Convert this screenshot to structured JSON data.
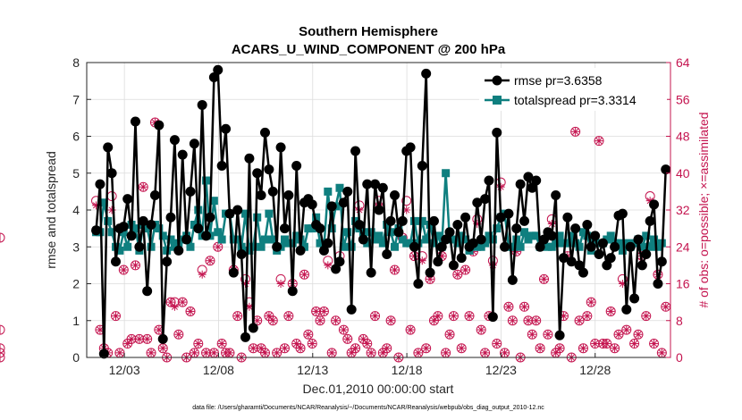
{
  "chart_data": {
    "type": "line",
    "title": "Southern Hemisphere",
    "subtitle": "ACARS_U_WIND_COMPONENT @ 200 hPa",
    "xlabel": "Dec.01,2010 00:00:00 start",
    "ylabel": "rmse and totalspread",
    "ylabel_right": "# of obs: o=possible; ×=assimilated",
    "x_ticks": [
      "12/03",
      "12/08",
      "12/13",
      "12/18",
      "12/23",
      "12/28"
    ],
    "x_tick_days": [
      3,
      8,
      13,
      18,
      23,
      28
    ],
    "xlim": [
      1.0,
      32.0
    ],
    "ylim": [
      0,
      8
    ],
    "yticks": [
      0,
      1,
      2,
      3,
      4,
      5,
      6,
      7,
      8
    ],
    "ylim_right": [
      0,
      64
    ],
    "yticks_right": [
      0,
      8,
      16,
      24,
      32,
      40,
      48,
      56,
      64
    ],
    "grid": true,
    "legend_position": "top-right",
    "footnote": "data file: /Users/gharamti/Documents/NCAR/Reanalysis/~/Documents/NCAR/Reanalysis/webpub/obs_diag_output_2010-12.nc",
    "colors": {
      "rmse": "#000000",
      "totalspread": "#0f7f7f",
      "obs_count": "#c4144f",
      "grid": "#dcdcdc"
    },
    "series": [
      {
        "name": "rmse pr=3.6358",
        "values": [
          3.45,
          4.7,
          0.1,
          5.7,
          5.0,
          2.6,
          3.5,
          3.55,
          4.3,
          3.3,
          6.4,
          3.0,
          3.7,
          1.8,
          3.6,
          4.4,
          6.3,
          0.5,
          2.6,
          3.8,
          5.9,
          2.9,
          5.5,
          3.2,
          4.5,
          5.8,
          3.5,
          6.85,
          3.3,
          3.8,
          7.6,
          7.8,
          5.2,
          6.2,
          3.9,
          2.3,
          4.0,
          2.8,
          0.55,
          5.4,
          0.8,
          5.0,
          4.4,
          6.1,
          5.1,
          4.5,
          3.0,
          5.7,
          3.5,
          4.4,
          1.8,
          5.2,
          2.9,
          4.2,
          4.3,
          4.15,
          3.6,
          3.5,
          2.9,
          3.1,
          4.1,
          2.4,
          2.6,
          4.2,
          4.5,
          1.3,
          5.6,
          3.6,
          3.2,
          4.7,
          2.3,
          4.7,
          4.0,
          4.6,
          2.8,
          3.7,
          4.4,
          3.4,
          3.7,
          5.6,
          5.7,
          3.0,
          2.0,
          5.2,
          7.7,
          2.3,
          3.7,
          2.6,
          3.0,
          3.2,
          3.4,
          2.5,
          3.6,
          2.7,
          3.8,
          3.0,
          3.1,
          4.2,
          3.2,
          4.3,
          4.8,
          1.1,
          6.1,
          3.8,
          3.0,
          3.9,
          2.1,
          3.5,
          4.7,
          3.7,
          4.9,
          4.6,
          4.8,
          3.0,
          3.2,
          3.4,
          3.3,
          4.4,
          0.6,
          2.7,
          3.8,
          2.6,
          3.5,
          2.5,
          2.3,
          3.6,
          3.0,
          3.3,
          2.8,
          3.1,
          2.5,
          2.7,
          3.0,
          3.85,
          3.9,
          1.3,
          3.0,
          1.6,
          3.2,
          2.5,
          2.8,
          3.7,
          4.15,
          2.0,
          2.6,
          5.1
        ]
      },
      {
        "name": "totalspread pr=3.3314",
        "values": [
          3.4,
          3.4,
          4.2,
          3.7,
          3.4,
          3.0,
          2.9,
          3.4,
          3.0,
          3.6,
          3.5,
          2.9,
          3.6,
          3.5,
          3.0,
          3.6,
          3.5,
          3.3,
          2.9,
          3.2,
          3.0,
          3.1,
          3.2,
          3.3,
          3.0,
          3.6,
          4.0,
          3.3,
          4.8,
          3.3,
          4.25,
          3.4,
          3.2,
          3.9,
          3.9,
          3.2,
          3.2,
          3.0,
          3.9,
          2.9,
          3.0,
          3.8,
          3.0,
          3.2,
          3.9,
          3.2,
          2.9,
          3.0,
          3.2,
          3.1,
          3.1,
          3.3,
          3.2,
          3.0,
          3.5,
          3.5,
          3.8,
          3.1,
          3.0,
          4.5,
          3.5,
          4.1,
          4.6,
          3.0,
          3.4,
          3.0,
          3.7,
          3.5,
          3.4,
          3.1,
          3.4,
          3.2,
          3.3,
          3.1,
          3.6,
          3.4,
          3.0,
          3.5,
          3.2,
          3.1,
          3.1,
          3.7,
          3.1,
          3.7,
          3.2,
          3.6,
          3.1,
          3.3,
          3.0,
          5.0,
          3.2,
          3.2,
          3.1,
          3.3,
          3.2,
          2.9,
          3.1,
          3.0,
          3.0,
          3.1,
          3.3,
          3.2,
          3.5,
          3.8,
          3.9,
          3.0,
          3.0,
          3.2,
          3.0,
          3.4,
          3.2,
          3.3,
          3.3,
          3.0,
          3.1,
          3.0,
          3.0,
          3.1,
          3.3,
          3.1,
          3.1,
          3.3,
          3.1,
          3.0,
          3.4,
          3.3,
          2.9,
          3.2,
          3.1,
          3.1,
          3.2,
          3.3,
          3.1,
          3.1,
          2.9,
          3.1,
          3.0,
          3.1,
          3.2,
          3.0,
          3.3,
          3.0,
          3.2,
          3.0,
          3.1
        ]
      },
      {
        "name": "obs possible",
        "axis": "right",
        "marker": "circle",
        "values": [
          34,
          6,
          2,
          1,
          35,
          9,
          1,
          19,
          3,
          4,
          20,
          4,
          37,
          4,
          1,
          51,
          6,
          2,
          0,
          12,
          12,
          5,
          12,
          0,
          10,
          1,
          3,
          19,
          1,
          21,
          1,
          24,
          3,
          1,
          1,
          19,
          9,
          0,
          17,
          12,
          2,
          8,
          2,
          1,
          9,
          8,
          1,
          17,
          2,
          9,
          16,
          3,
          2,
          18,
          5,
          3,
          10,
          8,
          10,
          21,
          1,
          8,
          22,
          6,
          4,
          1,
          2,
          33,
          4,
          3,
          1,
          9,
          34,
          1,
          2,
          8,
          19,
          0,
          26,
          34,
          6,
          22,
          1,
          22,
          2,
          17,
          8,
          9,
          22,
          1,
          5,
          9,
          18,
          2,
          19,
          9,
          23,
          30,
          6,
          1,
          9,
          21,
          3,
          38,
          1,
          11,
          8,
          23,
          0,
          11,
          8,
          5,
          8,
          2,
          17,
          5,
          30,
          1,
          2,
          9,
          22,
          0,
          49,
          8,
          2,
          9,
          12,
          3,
          47,
          3,
          3,
          10,
          2,
          5,
          17,
          6,
          24,
          3,
          5,
          22,
          9,
          35,
          3,
          18,
          1,
          11,
          2,
          26,
          6,
          1,
          0
        ]
      },
      {
        "name": "obs assimilated",
        "axis": "right",
        "marker": "star",
        "values": [
          33,
          6,
          2,
          1,
          32,
          9,
          1,
          19,
          3,
          4,
          20,
          4,
          37,
          4,
          1,
          51,
          6,
          2,
          0,
          12,
          11,
          5,
          12,
          0,
          10,
          1,
          3,
          18,
          1,
          21,
          1,
          24,
          3,
          1,
          1,
          19,
          9,
          0,
          16,
          11,
          2,
          8,
          2,
          1,
          9,
          8,
          1,
          16,
          2,
          9,
          16,
          3,
          2,
          18,
          5,
          3,
          10,
          8,
          10,
          20,
          1,
          8,
          21,
          6,
          4,
          1,
          2,
          32,
          4,
          3,
          1,
          9,
          33,
          1,
          2,
          8,
          19,
          0,
          26,
          32,
          6,
          22,
          1,
          21,
          2,
          17,
          8,
          9,
          22,
          1,
          5,
          9,
          18,
          2,
          19,
          9,
          23,
          29,
          6,
          1,
          9,
          20,
          3,
          37,
          1,
          11,
          8,
          23,
          0,
          11,
          8,
          5,
          8,
          2,
          17,
          5,
          29,
          1,
          2,
          9,
          22,
          0,
          49,
          8,
          2,
          9,
          12,
          3,
          47,
          3,
          3,
          10,
          2,
          5,
          16,
          6,
          24,
          3,
          5,
          22,
          9,
          34,
          3,
          18,
          1,
          11,
          2,
          26,
          6,
          1,
          0
        ]
      }
    ]
  }
}
